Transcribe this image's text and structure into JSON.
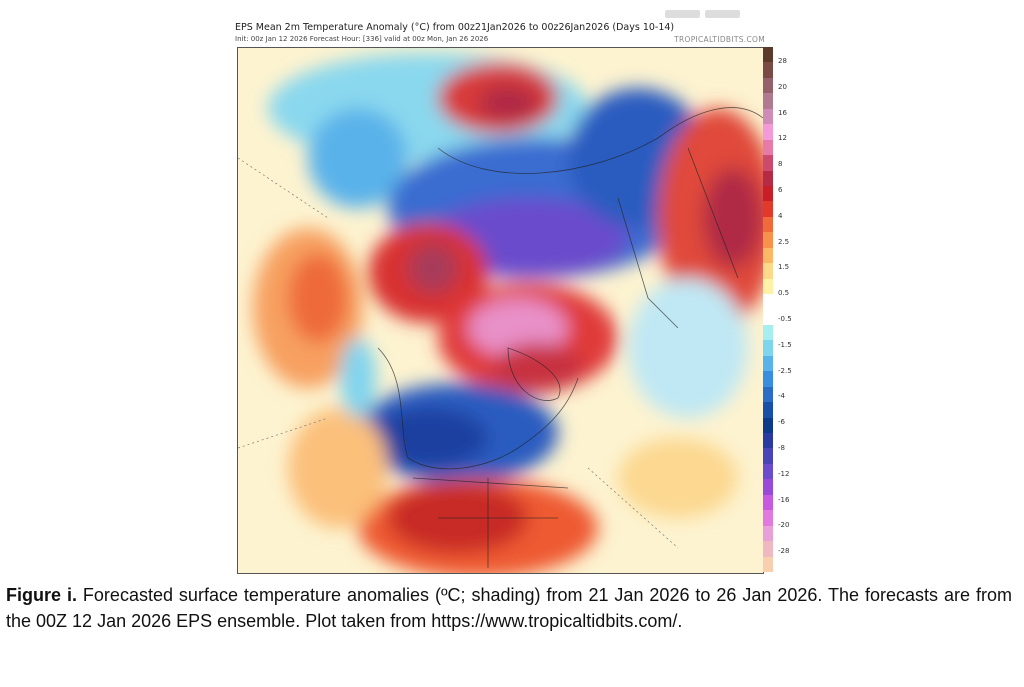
{
  "figure": {
    "title": "EPS Mean 2m Temperature Anomaly (°C) from 00z21Jan2026 to 00z26Jan2026 (Days 10-14)",
    "subtitle": "Init: 00z Jan 12 2026   Forecast Hour: [336]   valid at 00z Mon, Jan 26 2026",
    "brand": "TROPICALTIDBITS.COM",
    "colorbar": {
      "labels": [
        "28",
        "20",
        "16",
        "12",
        "8",
        "6",
        "4",
        "2.5",
        "1.5",
        "0.5",
        "-0.5",
        "-1.5",
        "-2.5",
        "-4",
        "-6",
        "-8",
        "-12",
        "-16",
        "-20",
        "-28"
      ],
      "colors": [
        "#5a3a2a",
        "#7a4a44",
        "#94606a",
        "#b07a90",
        "#d08cb8",
        "#f39ad8",
        "#e77aa8",
        "#cc4a6e",
        "#b52a44",
        "#c81e28",
        "#e23a2a",
        "#f06a3a",
        "#f7924a",
        "#fbb865",
        "#fdd98a",
        "#fff1a8",
        "#ffffff",
        "#ffffff",
        "#a8eef0",
        "#7fd4ee",
        "#5ab2ea",
        "#3a8ee0",
        "#2a6cc8",
        "#1850a8",
        "#0e3a8c",
        "#2a3aa0",
        "#4a44b8",
        "#6a4ccc",
        "#9a4ad8",
        "#c65ae0",
        "#e07ae0",
        "#e8a0d8",
        "#f0b8c0",
        "#f8d0b0"
      ]
    }
  },
  "caption": {
    "label": "Figure i.",
    "text": " Forecasted surface temperature anomalies (ºC; shading) from 21 Jan 2026 to 26 Jan 2026. The forecasts are from the 00Z 12 Jan 2026 EPS ensemble. Plot taken from https://www.tropicaltidbits.com/."
  }
}
